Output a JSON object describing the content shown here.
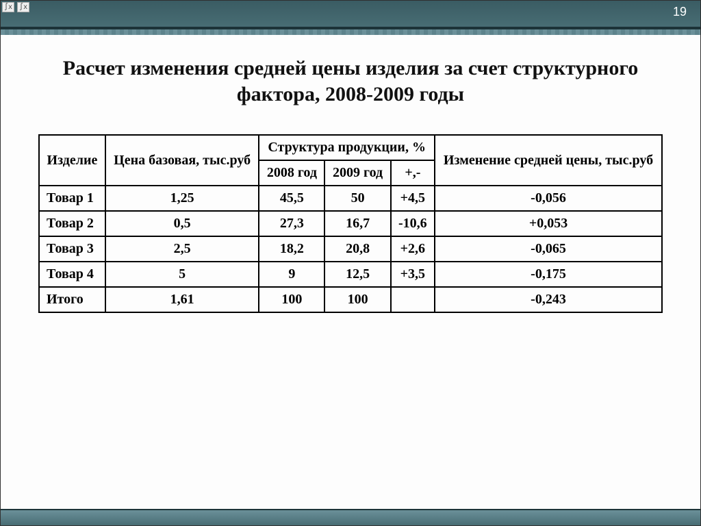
{
  "page_number": "19",
  "title": "Расчет изменения средней цены изделия за счет структурного фактора, 2008-2009 годы",
  "table": {
    "headers": {
      "product": "Изделие",
      "base_price": "Цена базовая, тыс.руб",
      "structure_group": "Структура продукции, %",
      "year_2008": "2008 год",
      "year_2009": "2009 год",
      "delta": "+,-",
      "price_change": "Изменение средней цены, тыс.руб"
    },
    "rows": [
      {
        "product": "Товар 1",
        "base_price": "1,25",
        "y2008": "45,5",
        "y2009": "50",
        "delta": "+4,5",
        "change": "-0,056"
      },
      {
        "product": "Товар 2",
        "base_price": "0,5",
        "y2008": "27,3",
        "y2009": "16,7",
        "delta": "-10,6",
        "change": "+0,053"
      },
      {
        "product": "Товар 3",
        "base_price": "2,5",
        "y2008": "18,2",
        "y2009": "20,8",
        "delta": "+2,6",
        "change": "-0,065"
      },
      {
        "product": "Товар 4",
        "base_price": "5",
        "y2008": "9",
        "y2009": "12,5",
        "delta": "+3,5",
        "change": "-0,175"
      }
    ],
    "total": {
      "product": "Итого",
      "base_price": "1,61",
      "y2008": "100",
      "y2009": "100",
      "delta": "",
      "change": "-0,243"
    }
  },
  "style": {
    "colors": {
      "topbar_bg_top": "#3a5c63",
      "topbar_bg_bottom": "#486d74",
      "topbar_border": "#1c3338",
      "accent_light": "#6b9099",
      "accent_dark": "#5d838c",
      "page_bg": "#fdfdfd",
      "pagenum_color": "#ffffff",
      "text_color": "#111111",
      "table_border": "#000000"
    },
    "fonts": {
      "title_size_pt": 30,
      "table_size_pt": 20,
      "pagenum_size_pt": 18,
      "family": "Times New Roman"
    },
    "layout": {
      "slide_w": 1024,
      "slide_h": 768,
      "topbar_h": 38,
      "accentbar_h": 8
    }
  }
}
